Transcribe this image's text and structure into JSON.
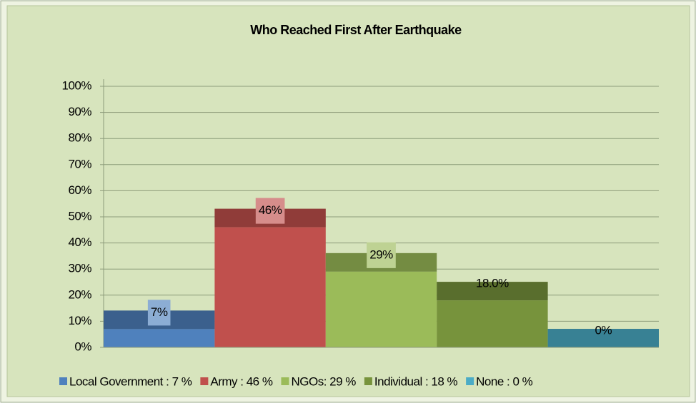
{
  "chart_data": {
    "type": "bar",
    "title": "Who Reached First After Earthquake",
    "categories": [
      "Local Government",
      "Army",
      "NGOs",
      "Individual",
      "None"
    ],
    "values": [
      7,
      46,
      29,
      18,
      0
    ],
    "value_labels": [
      "7%",
      "46%",
      "29%",
      "18.0%",
      "0%"
    ],
    "colors": [
      "#4f81bd",
      "#c0504d",
      "#9bbb59",
      "#77933c",
      "#4bacc6"
    ],
    "legend": [
      "Local Government : 7 %",
      "Army : 46 %",
      "NGOs: 29 %",
      "Individual : 18 %",
      "None : 0 %"
    ],
    "ylim": [
      0,
      100
    ],
    "yticks": [
      {
        "value": 0,
        "label": "0%"
      },
      {
        "value": 10,
        "label": "10%"
      },
      {
        "value": 20,
        "label": "20%"
      },
      {
        "value": 30,
        "label": "30%"
      },
      {
        "value": 40,
        "label": "40%"
      },
      {
        "value": 50,
        "label": "50%"
      },
      {
        "value": 60,
        "label": "60%"
      },
      {
        "value": 70,
        "label": "70%"
      },
      {
        "value": 80,
        "label": "80%"
      },
      {
        "value": 90,
        "label": "90%"
      },
      {
        "value": 100,
        "label": "100%"
      }
    ],
    "grid": true
  }
}
